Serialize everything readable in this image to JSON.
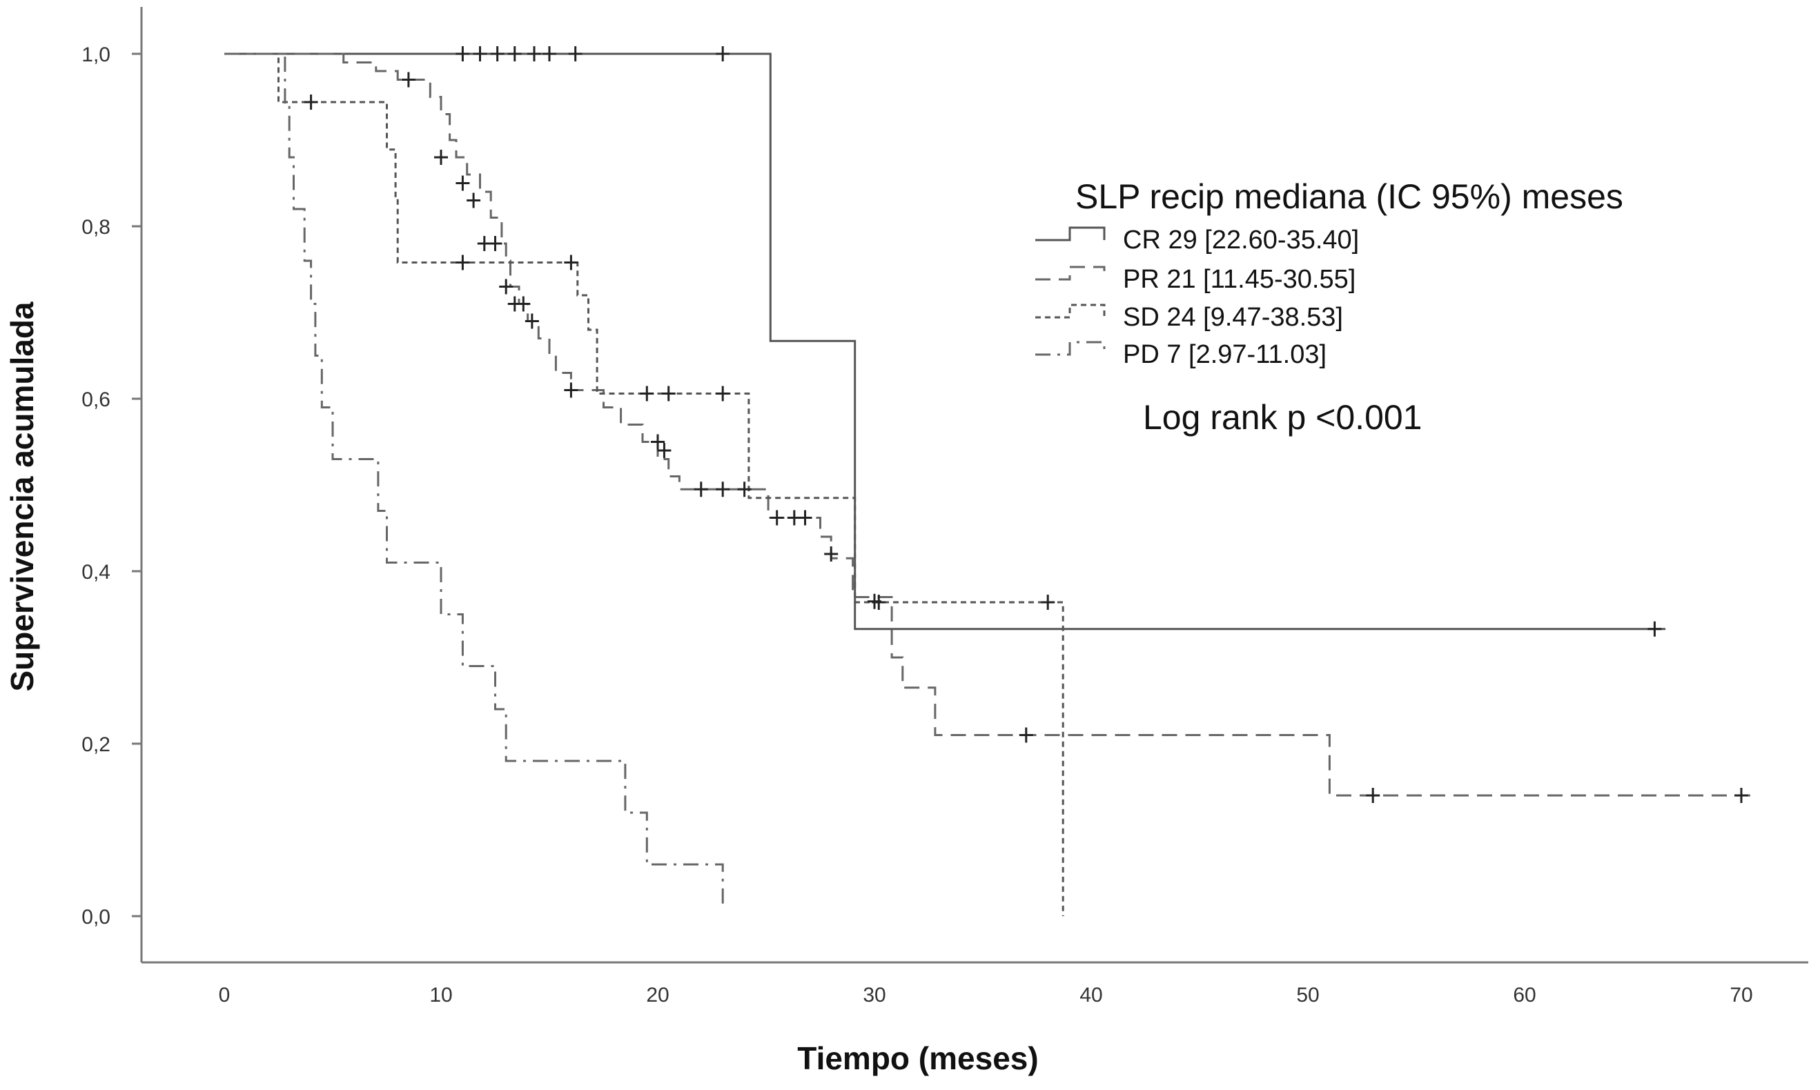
{
  "chart_data": {
    "type": "line",
    "subtype": "kaplan-meier",
    "xlabel": "Tiempo (meses)",
    "ylabel": "Supervivencia acumulada",
    "xlim": [
      0,
      73
    ],
    "ylim": [
      0,
      1.05
    ],
    "x_ticks": [
      0,
      10,
      20,
      30,
      40,
      50,
      60,
      70
    ],
    "x_tick_labels": [
      "0",
      "10",
      "20",
      "30",
      "40",
      "50",
      "60",
      "70"
    ],
    "y_ticks": [
      0,
      0.2,
      0.4,
      0.6,
      0.8,
      1.0
    ],
    "y_tick_labels": [
      "0,0",
      "0,2",
      "0,4",
      "0,6",
      "0,8",
      "1,0"
    ],
    "grid": false,
    "legend_title": "SLP recip mediana (IC 95%) meses",
    "legend_position": "top-right",
    "annotation": "Log rank p <0.001",
    "series": [
      {
        "name": "CR 29 [22.60-35.40]",
        "line_style": "solid",
        "color": "#555555",
        "steps": [
          [
            0,
            1.0
          ],
          [
            25.2,
            0.667
          ],
          [
            29.1,
            0.333
          ],
          [
            66.5,
            0.333
          ]
        ],
        "censored": [
          [
            11,
            1.0
          ],
          [
            11.8,
            1.0
          ],
          [
            12.6,
            1.0
          ],
          [
            13.4,
            1.0
          ],
          [
            14.3,
            1.0
          ],
          [
            15,
            1.0
          ],
          [
            16.2,
            1.0
          ],
          [
            23,
            1.0
          ],
          [
            66,
            0.333
          ]
        ]
      },
      {
        "name": "PR 21 [11.45-30.55]",
        "line_style": "dashed",
        "color": "#666666",
        "steps": [
          [
            0,
            1.0
          ],
          [
            5.5,
            0.99
          ],
          [
            7,
            0.98
          ],
          [
            8,
            0.97
          ],
          [
            9.5,
            0.95
          ],
          [
            10,
            0.93
          ],
          [
            10.4,
            0.9
          ],
          [
            10.7,
            0.88
          ],
          [
            11.2,
            0.86
          ],
          [
            11.8,
            0.84
          ],
          [
            12.3,
            0.81
          ],
          [
            12.8,
            0.78
          ],
          [
            13,
            0.76
          ],
          [
            13.2,
            0.73
          ],
          [
            13.6,
            0.71
          ],
          [
            14,
            0.69
          ],
          [
            14.5,
            0.67
          ],
          [
            15,
            0.65
          ],
          [
            15.3,
            0.63
          ],
          [
            16,
            0.61
          ],
          [
            17.5,
            0.59
          ],
          [
            18.3,
            0.57
          ],
          [
            19.3,
            0.55
          ],
          [
            20,
            0.53
          ],
          [
            20.5,
            0.51
          ],
          [
            21,
            0.495
          ],
          [
            25.1,
            0.462
          ],
          [
            27.5,
            0.44
          ],
          [
            28,
            0.415
          ],
          [
            29,
            0.37
          ],
          [
            30.8,
            0.3
          ],
          [
            31.3,
            0.265
          ],
          [
            32.8,
            0.21
          ],
          [
            51,
            0.14
          ],
          [
            70.5,
            0.14
          ]
        ],
        "censored": [
          [
            8.5,
            0.97
          ],
          [
            10,
            0.88
          ],
          [
            11,
            0.85
          ],
          [
            11.5,
            0.83
          ],
          [
            12,
            0.78
          ],
          [
            12.5,
            0.78
          ],
          [
            13,
            0.73
          ],
          [
            13.4,
            0.71
          ],
          [
            13.8,
            0.71
          ],
          [
            14.2,
            0.69
          ],
          [
            16,
            0.61
          ],
          [
            20,
            0.55
          ],
          [
            20.3,
            0.54
          ],
          [
            22,
            0.495
          ],
          [
            23,
            0.495
          ],
          [
            24,
            0.495
          ],
          [
            25.5,
            0.462
          ],
          [
            26.3,
            0.462
          ],
          [
            26.8,
            0.462
          ],
          [
            28,
            0.42
          ],
          [
            30,
            0.365
          ],
          [
            37,
            0.21
          ],
          [
            53,
            0.14
          ],
          [
            70,
            0.14
          ]
        ]
      },
      {
        "name": "SD 24 [9.47-38.53]",
        "line_style": "dotted",
        "color": "#555555",
        "steps": [
          [
            0,
            1.0
          ],
          [
            2.5,
            0.944
          ],
          [
            7.5,
            0.889
          ],
          [
            7.9,
            0.833
          ],
          [
            8,
            0.758
          ],
          [
            16.3,
            0.72
          ],
          [
            16.8,
            0.68
          ],
          [
            17.2,
            0.606
          ],
          [
            24.2,
            0.485
          ],
          [
            29.1,
            0.364
          ],
          [
            38.7,
            0.0
          ]
        ],
        "censored": [
          [
            4,
            0.944
          ],
          [
            11,
            0.758
          ],
          [
            16,
            0.758
          ],
          [
            19.5,
            0.606
          ],
          [
            20.5,
            0.606
          ],
          [
            23,
            0.606
          ],
          [
            30.2,
            0.364
          ],
          [
            38,
            0.364
          ]
        ]
      },
      {
        "name": "PD 7 [2.97-11.03]",
        "line_style": "dash-dot",
        "color": "#666666",
        "steps": [
          [
            0,
            1.0
          ],
          [
            2.8,
            0.94
          ],
          [
            3,
            0.88
          ],
          [
            3.2,
            0.82
          ],
          [
            3.7,
            0.76
          ],
          [
            4,
            0.71
          ],
          [
            4.2,
            0.65
          ],
          [
            4.5,
            0.59
          ],
          [
            5,
            0.53
          ],
          [
            7.1,
            0.47
          ],
          [
            7.5,
            0.41
          ],
          [
            10,
            0.35
          ],
          [
            11,
            0.29
          ],
          [
            12.5,
            0.24
          ],
          [
            13,
            0.18
          ],
          [
            18.5,
            0.12
          ],
          [
            19.5,
            0.06
          ],
          [
            23,
            0.01
          ]
        ],
        "censored": []
      }
    ]
  }
}
